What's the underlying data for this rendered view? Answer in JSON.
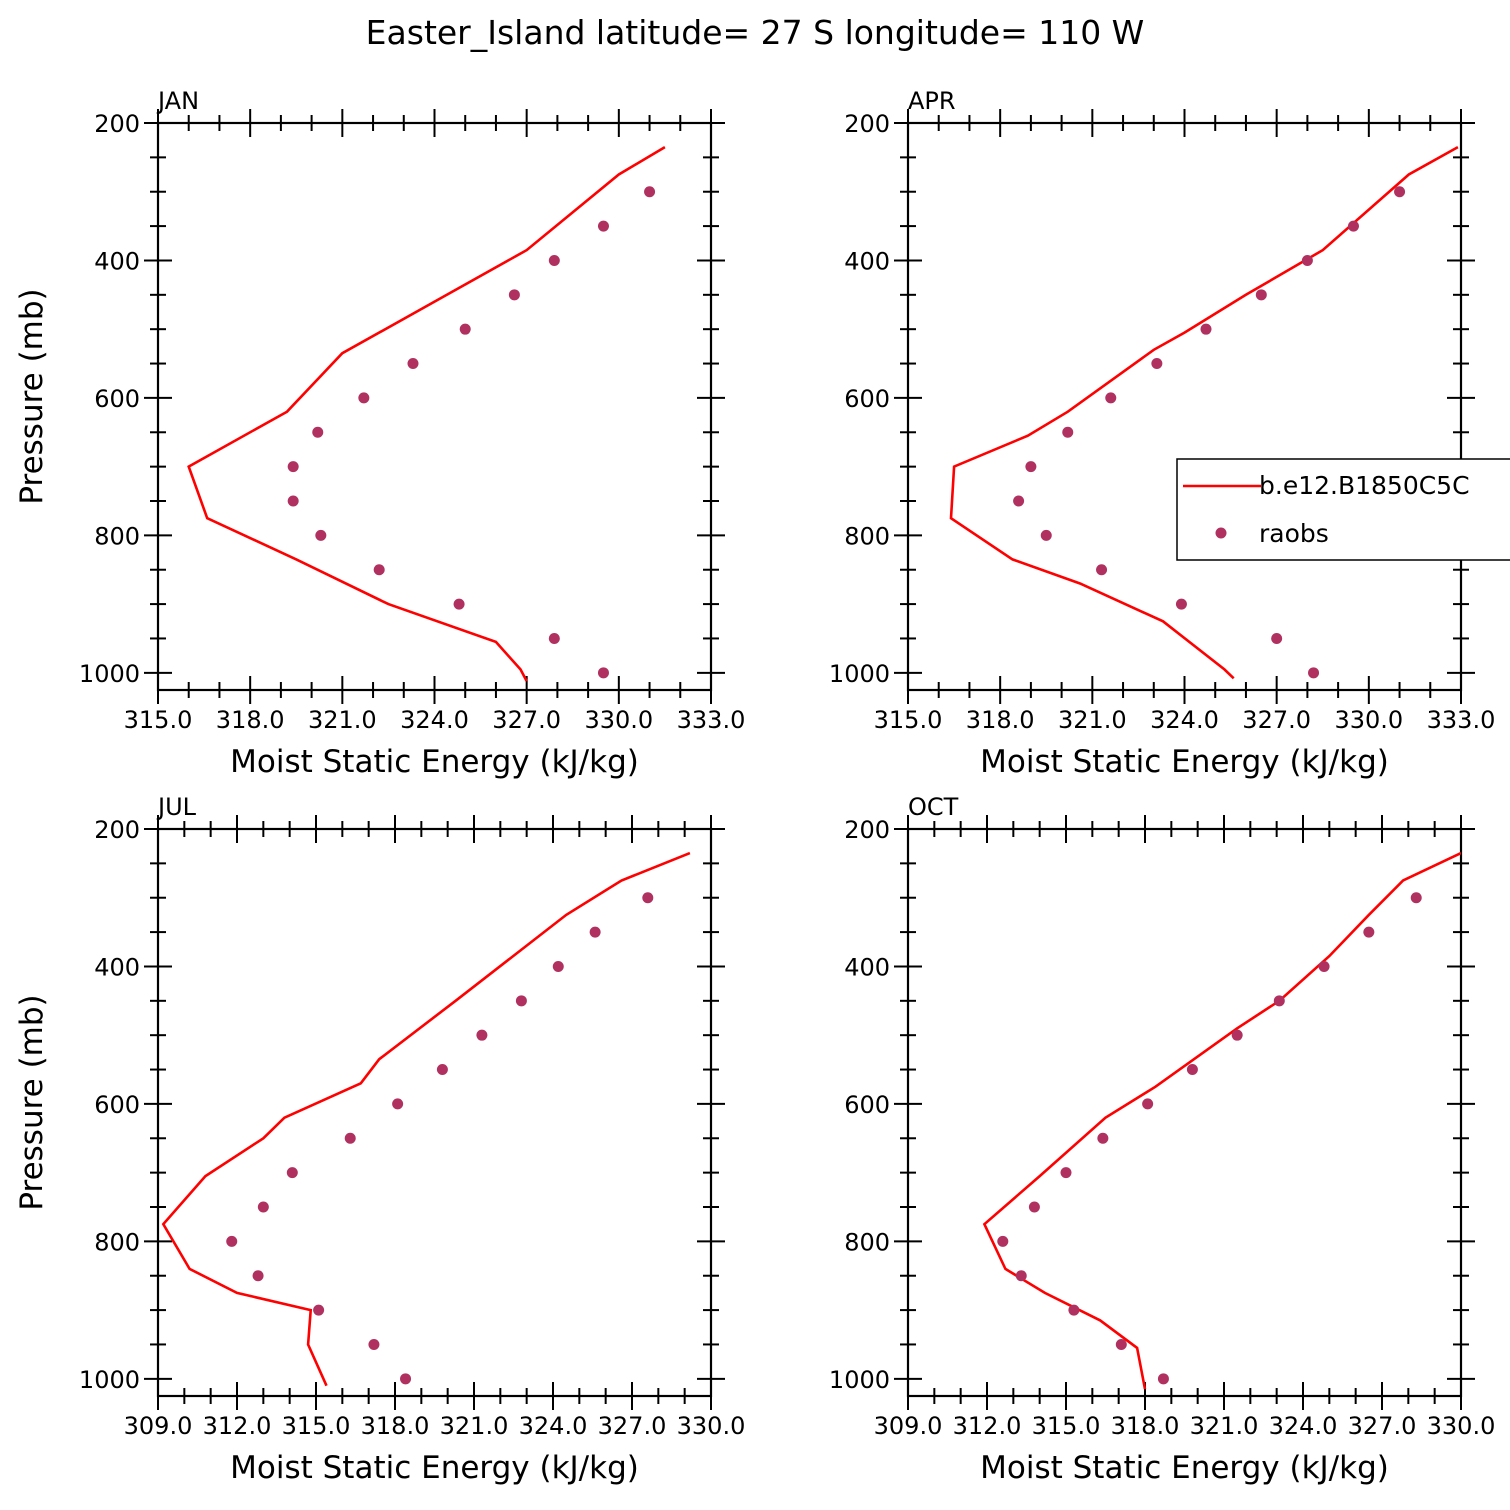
{
  "title": "Easter_Island  latitude= 27 S longitude= 110 W",
  "colors": {
    "model": "#ff0000",
    "obs": "#b03060",
    "axis": "#000000"
  },
  "legend": {
    "placement": "right-middle of APR panel (clipped at image edge)",
    "items": [
      {
        "label": "b.e12.B1850C5C",
        "kind": "line",
        "color": "#ff0000"
      },
      {
        "label": "raobs",
        "kind": "marker",
        "color": "#b03060"
      }
    ]
  },
  "chart_data": [
    {
      "type": "line",
      "panel": "JAN",
      "xlabel": "Moist Static Energy (kJ/kg)",
      "ylabel": "Pressure (mb)",
      "xlim": [
        315.0,
        333.0
      ],
      "ylim": [
        1025,
        200
      ],
      "y_inverted": true,
      "xticks": [
        315.0,
        318.0,
        321.0,
        324.0,
        327.0,
        330.0,
        333.0
      ],
      "xtick_labels": [
        "315.0",
        "318.0",
        "321.0",
        "324.0",
        "327.0",
        "330.0",
        "333.0"
      ],
      "yticks": [
        200,
        400,
        600,
        800,
        1000
      ],
      "series": [
        {
          "name": "b.e12.B1850C5C",
          "kind": "line",
          "x": [
            331.5,
            330.0,
            327.0,
            324.2,
            321.0,
            319.2,
            316.0,
            316.6,
            319.5,
            322.5,
            326.0,
            326.8,
            327.0
          ],
          "y": [
            235,
            275,
            385,
            455,
            535,
            620,
            700,
            775,
            835,
            900,
            955,
            995,
            1012
          ]
        },
        {
          "name": "raobs",
          "kind": "scatter",
          "x": [
            331.0,
            329.5,
            327.9,
            326.6,
            325.0,
            323.3,
            321.7,
            320.2,
            319.4,
            319.4,
            320.3,
            322.2,
            324.8,
            327.9,
            329.5
          ],
          "y": [
            300,
            350,
            400,
            450,
            500,
            550,
            600,
            650,
            700,
            750,
            800,
            850,
            900,
            950,
            1000
          ]
        }
      ]
    },
    {
      "type": "line",
      "panel": "APR",
      "xlabel": "Moist Static Energy (kJ/kg)",
      "ylabel": "",
      "xlim": [
        315.0,
        333.0
      ],
      "ylim": [
        1025,
        200
      ],
      "y_inverted": true,
      "xticks": [
        315.0,
        318.0,
        321.0,
        324.0,
        327.0,
        330.0,
        333.0
      ],
      "xtick_labels": [
        "315.0",
        "318.0",
        "321.0",
        "324.0",
        "327.0",
        "330.0",
        "333.0"
      ],
      "yticks": [
        200,
        400,
        600,
        800,
        1000
      ],
      "series": [
        {
          "name": "b.e12.B1850C5C",
          "kind": "line",
          "x": [
            332.9,
            331.3,
            328.5,
            326.0,
            324.0,
            323.0,
            320.2,
            318.9,
            316.5,
            316.4,
            318.4,
            320.6,
            323.3,
            325.3,
            325.6
          ],
          "y": [
            235,
            275,
            385,
            450,
            505,
            530,
            620,
            655,
            700,
            775,
            835,
            870,
            925,
            995,
            1008
          ]
        },
        {
          "name": "raobs",
          "kind": "scatter",
          "x": [
            331.0,
            329.5,
            328.0,
            326.5,
            324.7,
            323.1,
            321.6,
            320.2,
            319.0,
            318.6,
            319.5,
            321.3,
            323.9,
            327.0,
            328.2
          ],
          "y": [
            300,
            350,
            400,
            450,
            500,
            550,
            600,
            650,
            700,
            750,
            800,
            850,
            900,
            950,
            1000
          ]
        }
      ]
    },
    {
      "type": "line",
      "panel": "JUL",
      "xlabel": "Moist Static Energy (kJ/kg)",
      "ylabel": "Pressure (mb)",
      "xlim": [
        309.0,
        330.0
      ],
      "ylim": [
        1025,
        200
      ],
      "y_inverted": true,
      "xticks": [
        309.0,
        312.0,
        315.0,
        318.0,
        321.0,
        324.0,
        327.0,
        330.0
      ],
      "xtick_labels": [
        "309.0",
        "312.0",
        "315.0",
        "318.0",
        "321.0",
        "324.0",
        "327.0",
        "330.0"
      ],
      "yticks": [
        200,
        400,
        600,
        800,
        1000
      ],
      "series": [
        {
          "name": "b.e12.B1850C5C",
          "kind": "line",
          "x": [
            329.2,
            326.6,
            324.5,
            320.3,
            317.4,
            316.7,
            313.8,
            313.0,
            310.8,
            309.2,
            310.2,
            312.0,
            314.8,
            314.7,
            315.4
          ],
          "y": [
            235,
            275,
            325,
            450,
            535,
            570,
            620,
            650,
            705,
            775,
            840,
            875,
            900,
            950,
            1010
          ]
        },
        {
          "name": "raobs",
          "kind": "scatter",
          "x": [
            327.6,
            325.6,
            324.2,
            322.8,
            321.3,
            319.8,
            318.1,
            316.3,
            314.1,
            313.0,
            311.8,
            312.8,
            315.1,
            317.2,
            318.4
          ],
          "y": [
            300,
            350,
            400,
            450,
            500,
            550,
            600,
            650,
            700,
            750,
            800,
            850,
            900,
            950,
            1000
          ]
        }
      ]
    },
    {
      "type": "line",
      "panel": "OCT",
      "xlabel": "Moist Static Energy (kJ/kg)",
      "ylabel": "",
      "xlim": [
        309.0,
        330.0
      ],
      "ylim": [
        1025,
        200
      ],
      "y_inverted": true,
      "xticks": [
        309.0,
        312.0,
        315.0,
        318.0,
        321.0,
        324.0,
        327.0,
        330.0
      ],
      "xtick_labels": [
        "309.0",
        "312.0",
        "315.0",
        "318.0",
        "321.0",
        "324.0",
        "327.0",
        "330.0"
      ],
      "yticks": [
        200,
        400,
        600,
        800,
        1000
      ],
      "series": [
        {
          "name": "b.e12.B1850C5C",
          "kind": "line",
          "x": [
            330.0,
            327.8,
            326.5,
            325.0,
            323.1,
            321.5,
            318.4,
            316.5,
            314.0,
            311.9,
            312.7,
            314.2,
            316.3,
            317.7,
            318.0
          ],
          "y": [
            235,
            275,
            325,
            385,
            450,
            490,
            575,
            620,
            705,
            775,
            840,
            875,
            915,
            955,
            1015
          ]
        },
        {
          "name": "raobs",
          "kind": "scatter",
          "x": [
            328.3,
            326.5,
            324.8,
            323.1,
            321.5,
            319.8,
            318.1,
            316.4,
            315.0,
            313.8,
            312.6,
            313.3,
            315.3,
            317.1,
            318.7
          ],
          "y": [
            300,
            350,
            400,
            450,
            500,
            550,
            600,
            650,
            700,
            750,
            800,
            850,
            900,
            950,
            1000
          ]
        }
      ]
    }
  ]
}
